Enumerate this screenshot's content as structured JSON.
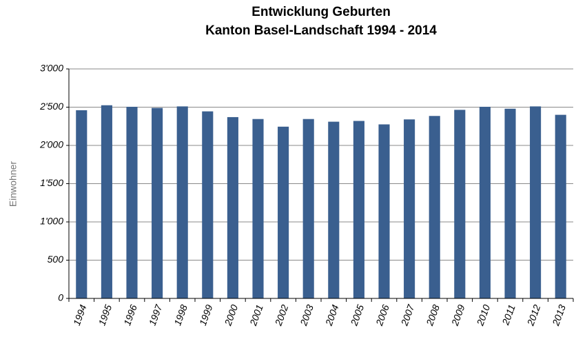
{
  "chart_data": {
    "type": "bar",
    "title": "Entwicklung Geburten",
    "subtitle": "Kanton Basel-Landschaft 1994 - 2014",
    "y_label": "Einwohner",
    "categories": [
      "1994",
      "1995",
      "1996",
      "1997",
      "1998",
      "1999",
      "2000",
      "2001",
      "2002",
      "2003",
      "2004",
      "2005",
      "2006",
      "2007",
      "2008",
      "2009",
      "2010",
      "2011",
      "2012",
      "2013"
    ],
    "values": [
      2460,
      2525,
      2505,
      2490,
      2510,
      2445,
      2370,
      2345,
      2245,
      2345,
      2310,
      2320,
      2275,
      2340,
      2385,
      2465,
      2505,
      2480,
      2510,
      2400
    ],
    "color": "#3a5f8f",
    "ylim": [
      0,
      3000
    ],
    "yticks": [
      0,
      500,
      {
        "value": 1000,
        "label": "1'000"
      },
      {
        "value": 1500,
        "label": "1'500"
      },
      {
        "value": 2000,
        "label": "2'000"
      },
      {
        "value": 2500,
        "label": "2'500"
      },
      {
        "value": 3000,
        "label": "3'000"
      }
    ],
    "grid": true
  }
}
